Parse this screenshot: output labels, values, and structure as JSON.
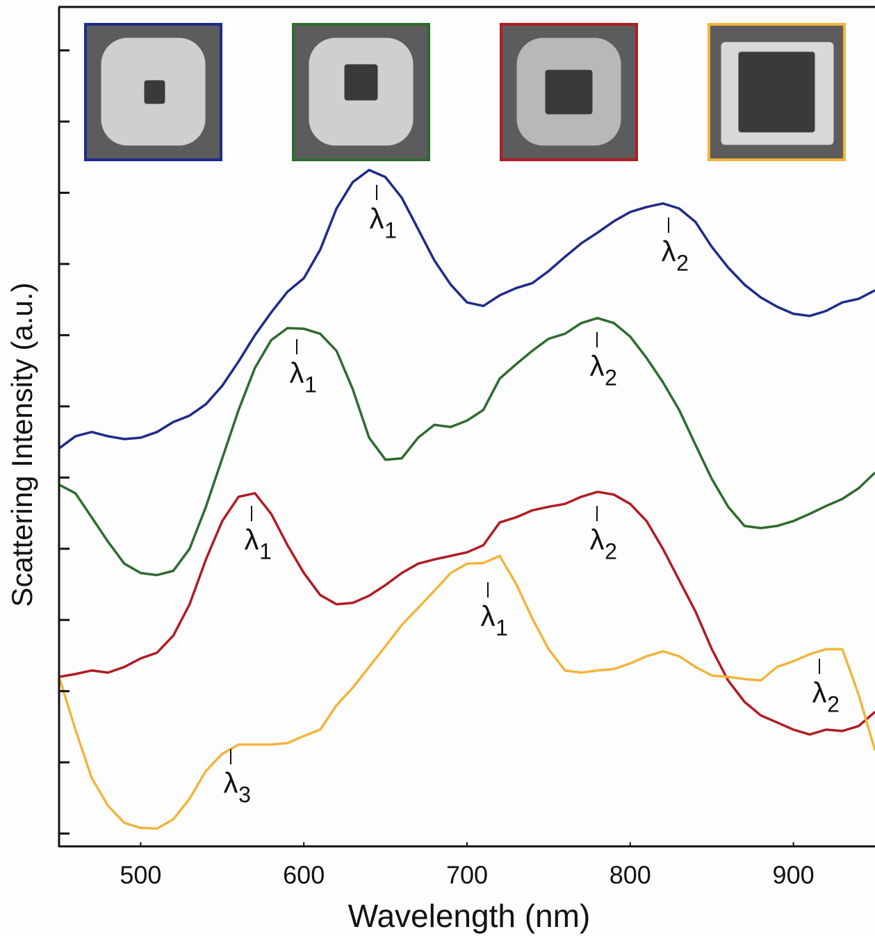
{
  "chart_data": {
    "type": "line",
    "x_label": "Wavelength (nm)",
    "y_label": "Scattering Intensity (a.u.)",
    "x": [
      450,
      460,
      470,
      480,
      490,
      500,
      510,
      520,
      530,
      540,
      550,
      560,
      570,
      580,
      590,
      600,
      610,
      620,
      630,
      640,
      650,
      660,
      670,
      680,
      690,
      700,
      710,
      720,
      730,
      740,
      750,
      760,
      770,
      780,
      790,
      800,
      810,
      820,
      830,
      840,
      850,
      860,
      870,
      880,
      890,
      900,
      910,
      920,
      930,
      940,
      950
    ],
    "series": [
      {
        "color": "#1f2a8a",
        "values": [
          54.1,
          55.8,
          56.4,
          55.8,
          55.4,
          55.6,
          56.4,
          57.8,
          58.7,
          60.3,
          62.9,
          66.3,
          70.0,
          73.2,
          76.1,
          78.0,
          82.0,
          87.8,
          91.5,
          93.2,
          92.2,
          89.3,
          84.9,
          80.5,
          77.1,
          74.6,
          74.1,
          75.6,
          76.6,
          77.3,
          79.0,
          81.0,
          82.9,
          84.4,
          86.0,
          87.3,
          88.0,
          88.5,
          87.8,
          85.9,
          82.4,
          79.5,
          77.1,
          75.3,
          74.0,
          73.0,
          72.7,
          73.4,
          74.6,
          75.1,
          76.3
        ]
      },
      {
        "color": "#2e6b2e",
        "values": [
          49.0,
          47.8,
          44.4,
          41.0,
          37.9,
          36.6,
          36.3,
          36.9,
          40.0,
          45.9,
          52.7,
          59.5,
          65.4,
          69.3,
          71.0,
          70.9,
          70.2,
          67.8,
          62.4,
          55.6,
          52.5,
          52.7,
          55.6,
          57.4,
          57.1,
          58.0,
          59.5,
          63.9,
          65.9,
          67.8,
          69.5,
          70.2,
          71.7,
          72.4,
          71.7,
          69.8,
          66.8,
          63.4,
          59.5,
          54.6,
          49.8,
          45.9,
          43.2,
          42.9,
          43.2,
          43.9,
          44.9,
          46.0,
          47.0,
          48.5,
          50.7
        ]
      },
      {
        "color": "#b01c22",
        "values": [
          22.0,
          22.4,
          22.9,
          22.6,
          23.4,
          24.6,
          25.4,
          27.8,
          32.2,
          38.5,
          43.9,
          47.3,
          47.8,
          44.9,
          40.5,
          36.6,
          33.5,
          32.2,
          32.4,
          33.4,
          34.9,
          36.6,
          37.9,
          38.5,
          39.0,
          39.5,
          40.5,
          43.7,
          44.4,
          45.4,
          45.9,
          46.3,
          47.3,
          48.0,
          47.6,
          46.3,
          43.9,
          40.0,
          35.6,
          31.2,
          25.9,
          21.5,
          18.5,
          16.6,
          15.6,
          14.6,
          13.9,
          14.6,
          14.4,
          15.1,
          17.1
        ]
      },
      {
        "color": "#f2b43c",
        "values": [
          22.0,
          14.6,
          7.8,
          3.9,
          1.5,
          0.8,
          0.7,
          2.0,
          4.9,
          8.8,
          11.2,
          12.5,
          12.5,
          12.5,
          12.7,
          13.7,
          14.6,
          18.0,
          20.5,
          23.4,
          26.3,
          29.3,
          31.7,
          34.1,
          36.6,
          37.9,
          38.0,
          39.0,
          35.1,
          30.2,
          25.9,
          22.9,
          22.6,
          22.9,
          23.1,
          23.9,
          24.9,
          25.6,
          24.9,
          23.4,
          22.2,
          22.0,
          21.7,
          21.5,
          23.4,
          24.2,
          25.2,
          25.9,
          25.9,
          19.5,
          11.7
        ]
      }
    ],
    "xlim": [
      450,
      950
    ],
    "ylim": [
      -1.8,
      116.1
    ],
    "xticks": [
      500,
      600,
      700,
      800,
      900
    ],
    "yticks": [
      0,
      10,
      20,
      30,
      40,
      50,
      60,
      70,
      80,
      90,
      100,
      110
    ],
    "ytick_labels": false,
    "annotations": [
      {
        "symbol": "λ",
        "subscript": "1"
      },
      {
        "symbol": "λ",
        "subscript": "2"
      },
      {
        "symbol": "λ",
        "subscript": "1"
      },
      {
        "symbol": "λ",
        "subscript": "2"
      },
      {
        "symbol": "λ",
        "subscript": "1"
      },
      {
        "symbol": "λ",
        "subscript": "2"
      },
      {
        "symbol": "λ",
        "subscript": "1"
      },
      {
        "symbol": "λ",
        "subscript": "2"
      },
      {
        "symbol": "λ",
        "subscript": "3"
      }
    ]
  }
}
